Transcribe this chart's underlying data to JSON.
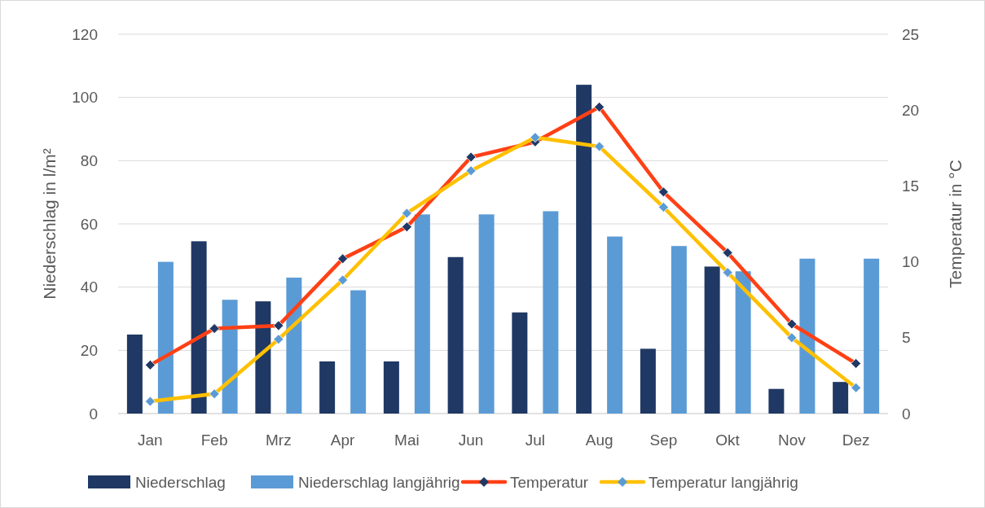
{
  "chart_data": {
    "type": "bar",
    "ylabel": "Niederschlag in l/m²",
    "y2label": "Temperatur in °C",
    "categories": [
      "Jan",
      "Feb",
      "Mrz",
      "Apr",
      "Mai",
      "Jun",
      "Jul",
      "Aug",
      "Sep",
      "Okt",
      "Nov",
      "Dez"
    ],
    "series": [
      {
        "name": "Niederschlag",
        "color": "#203864",
        "values": [
          25,
          54.5,
          35.5,
          16.5,
          16.5,
          49.5,
          32,
          104,
          20.5,
          46.5,
          7.8,
          10
        ]
      },
      {
        "name": "Niederschlag langjährig",
        "color": "#5b9bd5",
        "values": [
          48,
          36,
          43,
          39,
          63,
          63,
          64,
          56,
          53,
          45,
          49,
          49
        ]
      },
      {
        "name": "Temperatur",
        "type": "line",
        "axis": "y2",
        "color": "#ff4015",
        "values": [
          3.2,
          5.6,
          5.8,
          10.2,
          12.3,
          16.9,
          17.9,
          20.2,
          14.6,
          10.6,
          5.9,
          3.3
        ]
      },
      {
        "name": "Temperatur langjährig",
        "type": "line",
        "axis": "y2",
        "color": "#ffc000",
        "values": [
          0.8,
          1.3,
          4.9,
          8.8,
          13.2,
          16,
          18.2,
          17.6,
          13.6,
          9.3,
          5,
          1.7
        ]
      }
    ],
    "ylim": [
      0,
      120
    ],
    "yticks": [
      0,
      20,
      40,
      60,
      80,
      100,
      120
    ],
    "y2lim": [
      0,
      25
    ],
    "y2ticks": [
      0,
      5,
      10,
      15,
      20,
      25
    ],
    "grid": "y",
    "legend": "bottom",
    "marker": "diamond",
    "line_style": "solid"
  }
}
